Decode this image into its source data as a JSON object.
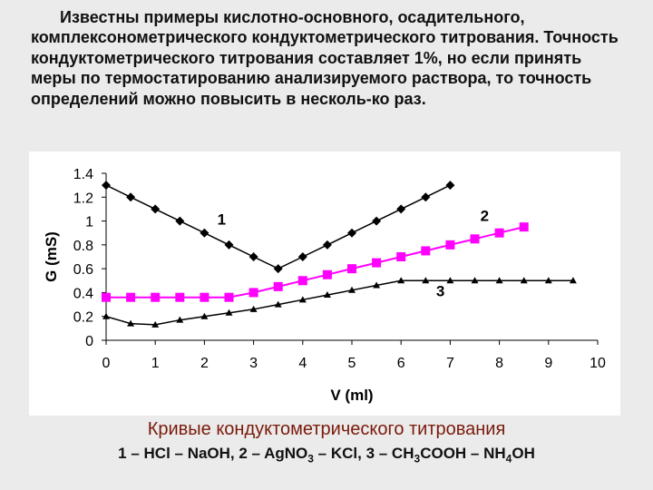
{
  "intro_text": "Известны примеры кислотно-основного, осадительного, комплексонометрического кондуктометрического титрования. Точность кондуктометрического титрования составляет 1%, но если принять меры по термостатированию анализируемого раствора, то точность определений можно повысить в несколь-ко раз.",
  "caption": "Кривые кондуктометрического титрования",
  "legend_line": {
    "s1": "1 – HCl – NaOH, 2 – AgNO",
    "sub1": "3",
    "s2": " – KCl, 3 – CH",
    "sub2": "3",
    "s3": "COOH – NH",
    "sub3": "4",
    "s4": "OH"
  },
  "colors": {
    "series1": "#000000",
    "series2": "#ff00ff",
    "series3": "#000000",
    "background": "#ebebeb",
    "caption": "#7a1a0a"
  },
  "chart_data": {
    "type": "line",
    "xlabel": "V (ml)",
    "ylabel": "G (mS)",
    "xlim": [
      0,
      10
    ],
    "ylim": [
      0,
      1.4
    ],
    "x_ticks": [
      0,
      1,
      2,
      3,
      4,
      5,
      6,
      7,
      8,
      9,
      10
    ],
    "y_ticks": [
      0,
      0.2,
      0.4,
      0.6,
      0.8,
      1,
      1.2,
      1.4
    ],
    "y_tick_labels": [
      "0",
      "0.2",
      "0.4",
      "0.6",
      "0.8",
      "1",
      "1.2",
      "1.4"
    ],
    "grid": false,
    "series": [
      {
        "label": "1",
        "marker": "diamond",
        "x": [
          0,
          0.5,
          1,
          1.5,
          2,
          2.5,
          3,
          3.5,
          4,
          4.5,
          5,
          5.5,
          6,
          6.5,
          7
        ],
        "y": [
          1.3,
          1.2,
          1.1,
          1.0,
          0.9,
          0.8,
          0.7,
          0.6,
          0.7,
          0.8,
          0.9,
          1.0,
          1.1,
          1.2,
          1.3
        ]
      },
      {
        "label": "2",
        "marker": "square",
        "x": [
          0,
          0.5,
          1,
          1.5,
          2,
          2.5,
          3,
          3.5,
          4,
          4.5,
          5,
          5.5,
          6,
          6.5,
          7,
          7.5,
          8,
          8.5
        ],
        "y": [
          0.36,
          0.36,
          0.36,
          0.36,
          0.36,
          0.36,
          0.4,
          0.45,
          0.5,
          0.55,
          0.6,
          0.65,
          0.7,
          0.75,
          0.8,
          0.85,
          0.9,
          0.95
        ]
      },
      {
        "label": "3",
        "marker": "triangle",
        "x": [
          0,
          0.5,
          1,
          1.5,
          2,
          2.5,
          3,
          3.5,
          4,
          4.5,
          5,
          5.5,
          6,
          6.5,
          7,
          7.5,
          8,
          8.5,
          9,
          9.5
        ],
        "y": [
          0.2,
          0.14,
          0.13,
          0.17,
          0.2,
          0.23,
          0.26,
          0.3,
          0.34,
          0.38,
          0.42,
          0.46,
          0.5,
          0.5,
          0.5,
          0.5,
          0.5,
          0.5,
          0.5,
          0.5
        ]
      }
    ],
    "annotations": [
      {
        "text": "1",
        "x": 2.35,
        "y": 0.97
      },
      {
        "text": "2",
        "x": 7.7,
        "y": 1.0
      },
      {
        "text": "3",
        "x": 6.8,
        "y": 0.37
      }
    ]
  }
}
